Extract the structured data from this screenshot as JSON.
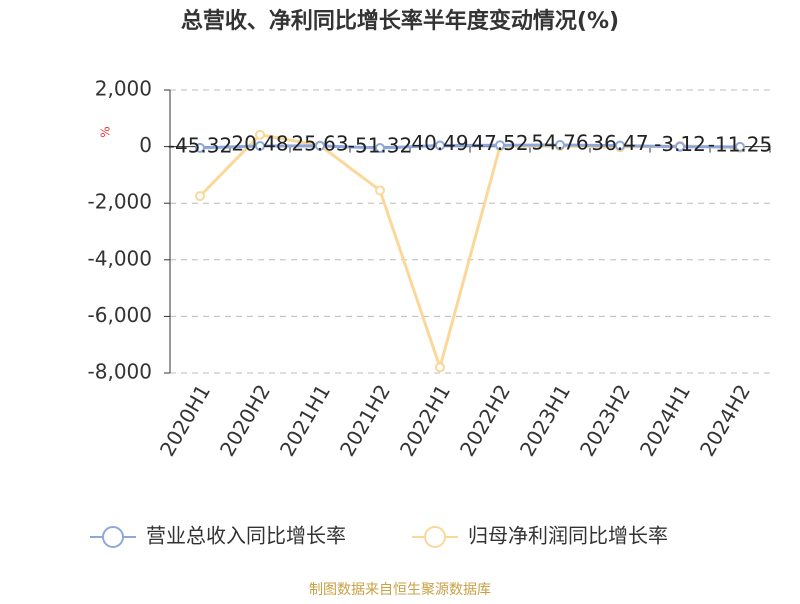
{
  "chart_data": {
    "type": "line",
    "title": "总营收、净利同比增长率半年度变动情况(%)",
    "y_label": "%",
    "categories": [
      "2020H1",
      "2020H2",
      "2021H1",
      "2021H2",
      "2022H1",
      "2022H2",
      "2023H1",
      "2023H2",
      "2024H1",
      "2024H2"
    ],
    "series": [
      {
        "name": "营业总收入同比增长率",
        "color": "#8fa8dc",
        "values": [
          -45.32,
          20.48,
          25.63,
          -51.32,
          40.49,
          47.52,
          54.76,
          36.47,
          -3.12,
          -11.25
        ]
      },
      {
        "name": "归母净利润同比增长率",
        "color": "#fbd899",
        "values": [
          -1750,
          420,
          40,
          -1550,
          -7800,
          10,
          20,
          -20,
          30,
          -40
        ]
      }
    ],
    "ylim": [
      -8000,
      2000
    ],
    "yticks": [
      {
        "value": 2000,
        "label": "2,000"
      },
      0,
      {
        "value": -2000,
        "label": "-2,000"
      },
      {
        "value": -4000,
        "label": "-4,000"
      },
      {
        "value": -6000,
        "label": "-6,000"
      },
      {
        "value": -8000,
        "label": "-8,000"
      }
    ],
    "grid": true,
    "legend": "bottom",
    "source": "制图数据来自恒生聚源数据库"
  }
}
